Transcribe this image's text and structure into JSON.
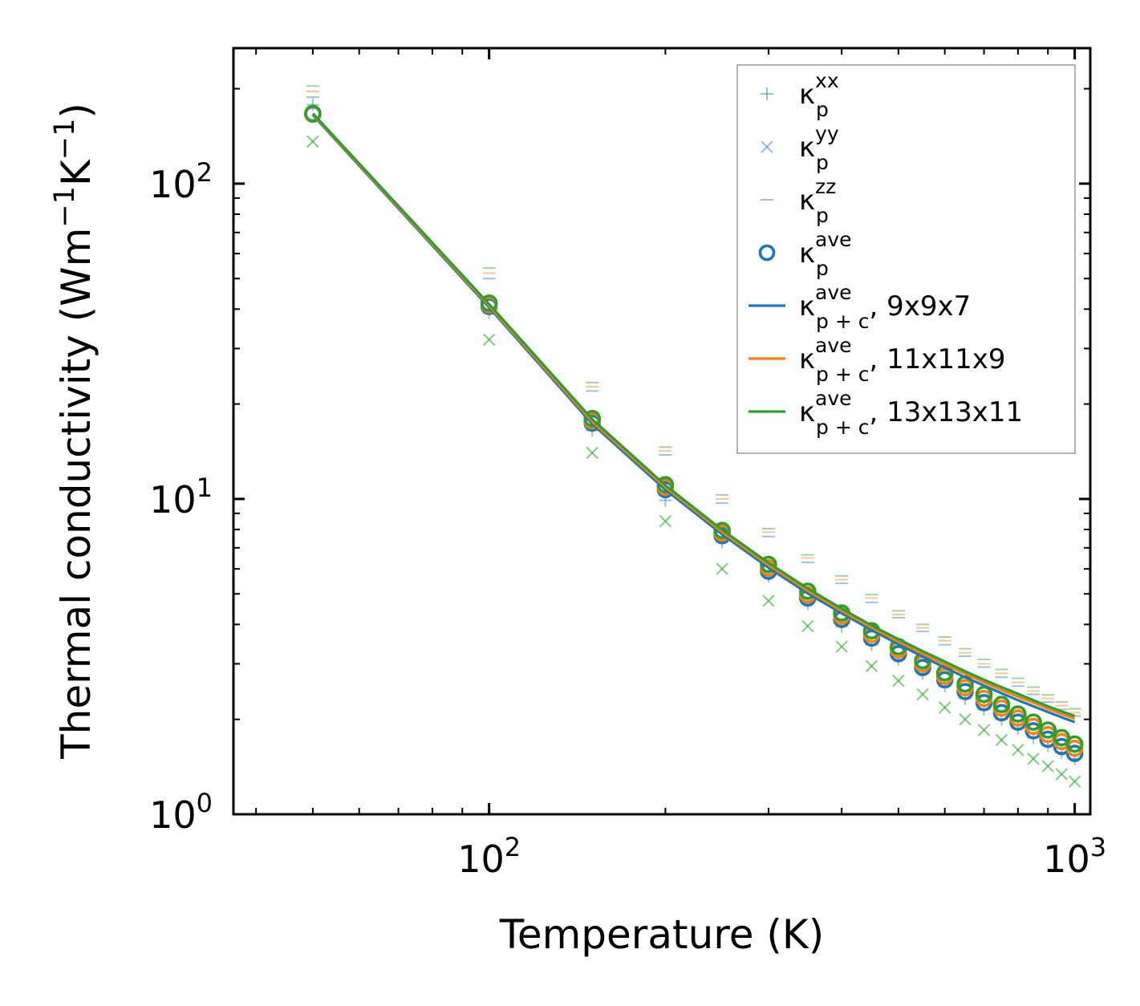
{
  "chart_data": {
    "type": "scatter",
    "xscale": "log",
    "yscale": "log",
    "xlim": [
      36.6,
      1063
    ],
    "ylim": [
      1,
      269
    ],
    "xlabel": "Temperature (K)",
    "ylabel": {
      "base": "Thermal conductivity (Wm",
      "sup1": "−1",
      "mid": "K",
      "sup2": "−1",
      "end": ")"
    },
    "xticks": [
      {
        "value": 100,
        "base": "10",
        "exp": "2"
      },
      {
        "value": 1000,
        "base": "10",
        "exp": "3"
      }
    ],
    "yticks": [
      {
        "value": 1,
        "base": "10",
        "exp": "0"
      },
      {
        "value": 10,
        "base": "10",
        "exp": "1"
      },
      {
        "value": 100,
        "base": "10",
        "exp": "2"
      }
    ],
    "temperatures": [
      50,
      100,
      150,
      200,
      250,
      300,
      350,
      400,
      450,
      500,
      550,
      600,
      650,
      700,
      750,
      800,
      850,
      900,
      950,
      1000
    ],
    "colors": {
      "mesh_9x9x7": "#1f77b4",
      "mesh_11x11x9": "#ff7f0e",
      "mesh_13x13x11": "#2ca02c"
    },
    "series": [
      {
        "name": "kappa_p_xx",
        "marker": "plus",
        "color": "#1f77b4",
        "alpha": 0.45,
        "values": [
          178,
          39,
          16.5,
          9.9,
          7.3,
          5.7,
          4.65,
          3.95,
          3.45,
          3.1,
          2.8,
          2.55,
          2.33,
          2.15,
          2.0,
          1.87,
          1.75,
          1.65,
          1.57,
          1.5
        ]
      },
      {
        "name": "kappa_p_yy",
        "marker": "x",
        "color": "#2ca02c",
        "alpha": 0.55,
        "values": [
          136,
          32,
          14,
          8.5,
          6.0,
          4.75,
          3.95,
          3.4,
          2.95,
          2.65,
          2.4,
          2.18,
          2.0,
          1.85,
          1.72,
          1.6,
          1.5,
          1.42,
          1.34,
          1.27
        ]
      },
      {
        "name": "kappa_p_zz_9x9x7",
        "marker": "hline",
        "color": "#1f77b4",
        "alpha": 0.45,
        "values": [
          188,
          50,
          22,
          13.8,
          9.7,
          7.6,
          6.3,
          5.4,
          4.7,
          4.2,
          3.8,
          3.45,
          3.17,
          2.93,
          2.72,
          2.55,
          2.4,
          2.27,
          2.15,
          2.05
        ]
      },
      {
        "name": "kappa_p_zz_11x11x9",
        "marker": "hline",
        "color": "#ff7f0e",
        "alpha": 0.45,
        "values": [
          196,
          52,
          22.7,
          14.2,
          10.0,
          7.85,
          6.5,
          5.55,
          4.85,
          4.3,
          3.9,
          3.55,
          3.25,
          3.0,
          2.8,
          2.62,
          2.46,
          2.33,
          2.21,
          2.1
        ]
      },
      {
        "name": "kappa_p_zz_13x13x11",
        "marker": "hline",
        "color": "#2ca02c",
        "alpha": 0.45,
        "values": [
          204,
          54,
          23.4,
          14.6,
          10.3,
          8.05,
          6.65,
          5.7,
          4.97,
          4.42,
          4.0,
          3.65,
          3.35,
          3.1,
          2.88,
          2.7,
          2.53,
          2.39,
          2.27,
          2.16
        ]
      },
      {
        "name": "kappa_p_ave_9x9x7",
        "marker": "circle",
        "color": "#1f77b4",
        "alpha": 1,
        "values": [
          166,
          40.8,
          17.4,
          10.7,
          7.65,
          5.9,
          4.85,
          4.15,
          3.62,
          3.23,
          2.92,
          2.67,
          2.45,
          2.26,
          2.1,
          1.96,
          1.84,
          1.73,
          1.64,
          1.56
        ]
      },
      {
        "name": "kappa_p_ave_11x11x9",
        "marker": "circle",
        "color": "#ff7f0e",
        "alpha": 1,
        "values": [
          166.5,
          41.3,
          17.7,
          10.9,
          7.8,
          6.05,
          4.97,
          4.25,
          3.72,
          3.32,
          3.0,
          2.74,
          2.52,
          2.33,
          2.17,
          2.02,
          1.9,
          1.79,
          1.7,
          1.62
        ]
      },
      {
        "name": "kappa_p_ave_13x13x11",
        "marker": "circle",
        "color": "#2ca02c",
        "alpha": 1,
        "values": [
          167,
          41.8,
          18.0,
          11.1,
          7.95,
          6.2,
          5.1,
          4.35,
          3.82,
          3.4,
          3.07,
          2.81,
          2.59,
          2.4,
          2.23,
          2.08,
          1.96,
          1.85,
          1.75,
          1.67
        ]
      },
      {
        "name": "kappa_pc_ave_9x9x7",
        "marker": "line",
        "color": "#1f77b4",
        "alpha": 1,
        "values": [
          165,
          40.5,
          17.3,
          10.7,
          7.72,
          6.05,
          5.02,
          4.34,
          3.84,
          3.46,
          3.16,
          2.92,
          2.72,
          2.56,
          2.42,
          2.3,
          2.2,
          2.11,
          2.03,
          1.96
        ]
      },
      {
        "name": "kappa_pc_ave_11x11x9",
        "marker": "line",
        "color": "#ff7f0e",
        "alpha": 1,
        "values": [
          166,
          41,
          17.6,
          10.9,
          7.86,
          6.17,
          5.12,
          4.42,
          3.91,
          3.53,
          3.23,
          2.99,
          2.79,
          2.62,
          2.48,
          2.36,
          2.26,
          2.16,
          2.08,
          2.01
        ]
      },
      {
        "name": "kappa_pc_ave_13x13x11",
        "marker": "line",
        "color": "#2ca02c",
        "alpha": 1,
        "values": [
          167,
          41.5,
          17.9,
          11.05,
          7.98,
          6.27,
          5.2,
          4.49,
          3.97,
          3.59,
          3.29,
          3.05,
          2.84,
          2.67,
          2.53,
          2.41,
          2.3,
          2.2,
          2.12,
          2.05
        ]
      }
    ],
    "legend": {
      "placement": "top-right",
      "entries": [
        {
          "marker": "plus",
          "color": "#1f77b4",
          "base": "κ",
          "sub": "p",
          "sup": "xx",
          "suffix": ""
        },
        {
          "marker": "x",
          "color": "#1f77b4",
          "base": "κ",
          "sub": "p",
          "sup": "yy",
          "suffix": ""
        },
        {
          "marker": "hline",
          "color": "#1f77b4",
          "base": "κ",
          "sub": "p",
          "sup": "zz",
          "suffix": ""
        },
        {
          "marker": "circle",
          "color": "#1f77b4",
          "base": "κ",
          "sub": "p",
          "sup": "ave",
          "suffix": ""
        },
        {
          "marker": "line",
          "color": "#1f77b4",
          "base": "κ",
          "sub": "p + c",
          "sup": "ave",
          "suffix": ", 9x9x7"
        },
        {
          "marker": "line",
          "color": "#ff7f0e",
          "base": "κ",
          "sub": "p + c",
          "sup": "ave",
          "suffix": ", 11x11x9"
        },
        {
          "marker": "line",
          "color": "#2ca02c",
          "base": "κ",
          "sub": "p + c",
          "sup": "ave",
          "suffix": ", 13x13x11"
        }
      ]
    }
  }
}
